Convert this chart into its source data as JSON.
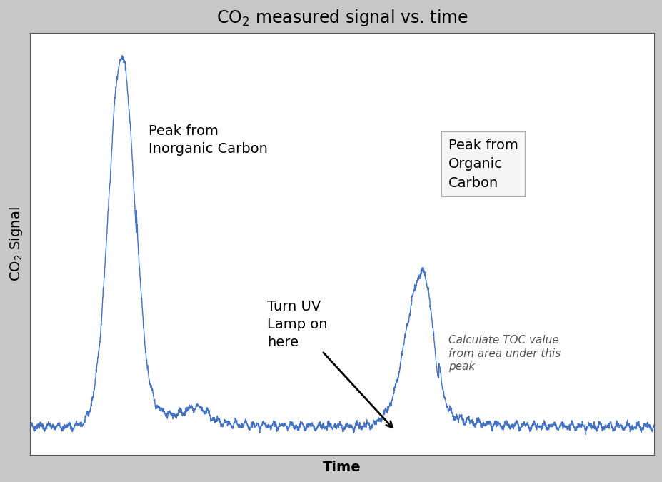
{
  "title": "CO$_2$ measured signal vs. time",
  "xlabel": "Time",
  "ylabel": "CO$_2$ Signal",
  "line_color": "#4472C4",
  "fig_bg_color": "#c8c8c8",
  "plot_bg_color": "#ffffff",
  "annotation_ic": "Peak from\nInorganic Carbon",
  "annotation_oc": "Peak from\nOrganic\nCarbon",
  "annotation_uv": "Turn UV\nLamp on\nhere",
  "annotation_toc": "Calculate TOC value\nfrom area under this\npeak",
  "title_fontsize": 17,
  "label_fontsize": 14,
  "annotation_fontsize": 14,
  "toc_fontsize": 11
}
